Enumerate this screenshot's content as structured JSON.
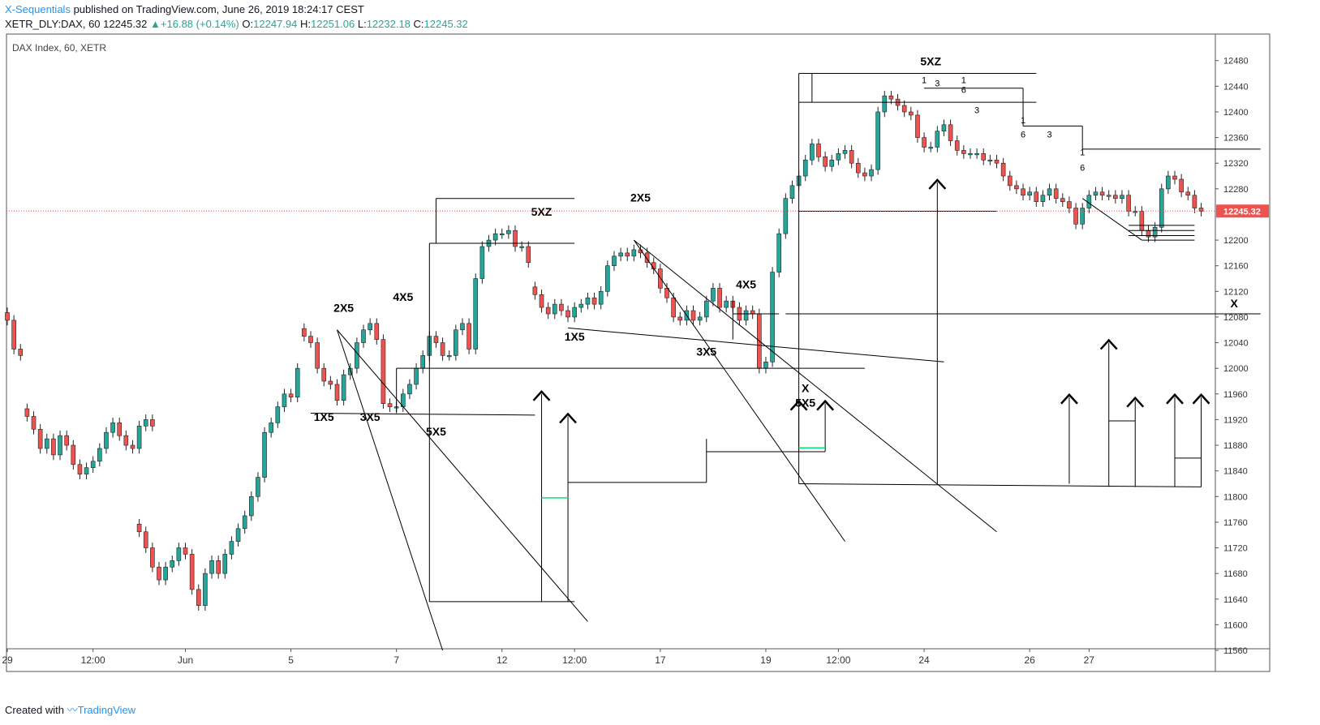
{
  "header": {
    "publisher": "X-Sequentials",
    "published_text": "published on TradingView.com, June 26, 2019 18:24:17 CEST",
    "symbol": "XETR_DLY:DAX, 60",
    "last": "12245.32",
    "change": "+16.88 (+0.14%)",
    "open_label": "O:",
    "open": "12247.94",
    "high_label": "H:",
    "high": "12251.06",
    "low_label": "L:",
    "low": "12232.18",
    "close_label": "C:",
    "close": "12245.32"
  },
  "footer": {
    "created_with": "Created with",
    "brand": "TradingView"
  },
  "colors": {
    "up": "#26a69a",
    "down": "#ef5350",
    "price_line": "#ef5350",
    "accent": "#2196f3",
    "annotation": "#000000",
    "marker_green": "#00e676"
  },
  "chart_data": {
    "type": "candlestick",
    "title": "DAX Index, 60, XETR",
    "last_price": 12245.32,
    "ylim": [
      11540,
      12510
    ],
    "y_ticks": [
      12480,
      12440,
      12400,
      12360,
      12320,
      12280,
      12200,
      12160,
      12120,
      12080,
      12040,
      12000,
      11960,
      11920,
      11880,
      11840,
      11800,
      11760,
      11720,
      11680,
      11640,
      11600,
      11560
    ],
    "x_ticks": [
      {
        "label": "29",
        "bar": 0
      },
      {
        "label": "12:00",
        "bar": 13
      },
      {
        "label": "Jun",
        "bar": 27
      },
      {
        "label": "5",
        "bar": 43
      },
      {
        "label": "7",
        "bar": 59
      },
      {
        "label": "12",
        "bar": 75
      },
      {
        "label": "12:00",
        "bar": 86
      },
      {
        "label": "17",
        "bar": 99
      },
      {
        "label": "19",
        "bar": 115
      },
      {
        "label": "12:00",
        "bar": 126
      },
      {
        "label": "24",
        "bar": 139
      },
      {
        "label": "26",
        "bar": 155
      },
      {
        "label": "27",
        "bar": 164
      }
    ],
    "segments": [
      {
        "start": 0,
        "values": [
          12075,
          12030,
          12020
        ]
      },
      {
        "start": 3,
        "values": [
          11925,
          11905,
          11875,
          11890,
          11865,
          11895,
          11880,
          11850,
          11835,
          11845,
          11855,
          11875,
          11900,
          11915,
          11895,
          11880,
          11875,
          11910,
          11920,
          11910
        ]
      },
      {
        "start": 20,
        "values": [
          11745,
          11720,
          11690,
          11670,
          11690,
          11700,
          11720,
          11710,
          11655,
          11630,
          11680,
          11700,
          11680,
          11710,
          11730,
          11750,
          11770,
          11800,
          11830,
          11900,
          11915,
          11940,
          11960,
          11955,
          12000
        ]
      },
      {
        "start": 45,
        "values": [
          12050,
          12040,
          12000,
          11980,
          11975,
          11950,
          11990,
          12000,
          12040,
          12060,
          12070,
          12045,
          11945,
          11940,
          11940,
          11960,
          11975,
          12000,
          12020,
          12050,
          12040,
          12020,
          12020,
          12060,
          12070,
          12030,
          12140,
          12190,
          12200,
          12210,
          12210,
          12215,
          12190,
          12190,
          12165
        ]
      },
      {
        "start": 80,
        "values": [
          12115,
          12095,
          12085,
          12100,
          12090,
          12080,
          12095,
          12100,
          12110,
          12100,
          12120,
          12160,
          12175,
          12180,
          12175,
          12185,
          12180,
          12165,
          12155,
          12125,
          12110,
          12080,
          12075,
          12090,
          12075,
          12080,
          12105,
          12125,
          12095,
          12105,
          12095,
          12075,
          12090,
          12085,
          12000,
          12010,
          12150,
          12210,
          12265,
          12285,
          12300,
          12325,
          12350,
          12330,
          12315,
          12325,
          12335,
          12340,
          12320,
          12305,
          12300,
          12310,
          12400,
          12425,
          12420,
          12410,
          12400,
          12395,
          12360,
          12345,
          12345,
          12370,
          12380,
          12355,
          12340,
          12335,
          12335,
          12335,
          12325,
          12325,
          12320,
          12300,
          12285,
          12280,
          12270,
          12275,
          12260,
          12270,
          12280,
          12265,
          12260,
          12250,
          12225,
          12250,
          12270,
          12275,
          12270,
          12270,
          12265,
          12270,
          12245,
          12245,
          12215,
          12205,
          12220,
          12280,
          12300,
          12295,
          12275,
          12270,
          12250,
          12245
        ]
      }
    ],
    "lines": [
      {
        "x1": 65,
        "y1": 12265,
        "x2": 86,
        "y2": 12265
      },
      {
        "x1": 65,
        "y1": 12265,
        "x2": 65,
        "y2": 12195
      },
      {
        "x1": 64,
        "y1": 12195,
        "x2": 86,
        "y2": 12195
      },
      {
        "x1": 64,
        "y1": 12195,
        "x2": 64,
        "y2": 11636
      },
      {
        "x1": 64,
        "y1": 11636,
        "x2": 86,
        "y2": 11636
      },
      {
        "x1": 81,
        "y1": 11636,
        "x2": 81,
        "y2": 11960
      },
      {
        "x1": 85,
        "y1": 11636,
        "x2": 85,
        "y2": 11925
      },
      {
        "x1": 85,
        "y1": 11822,
        "x2": 106,
        "y2": 11822
      },
      {
        "x1": 106,
        "y1": 11822,
        "x2": 106,
        "y2": 11890
      },
      {
        "x1": 106,
        "y1": 11870,
        "x2": 124,
        "y2": 11870
      },
      {
        "x1": 120,
        "y1": 11870,
        "x2": 120,
        "y2": 11945
      },
      {
        "x1": 124,
        "y1": 11870,
        "x2": 124,
        "y2": 11945
      },
      {
        "x1": 120,
        "y1": 12460,
        "x2": 120,
        "y2": 11820
      },
      {
        "x1": 120,
        "y1": 12460,
        "x2": 156,
        "y2": 12460
      },
      {
        "x1": 122,
        "y1": 12460,
        "x2": 122,
        "y2": 12415
      },
      {
        "x1": 120,
        "y1": 12415,
        "x2": 156,
        "y2": 12415
      },
      {
        "x1": 139,
        "y1": 12437,
        "x2": 154,
        "y2": 12437
      },
      {
        "x1": 154,
        "y1": 12437,
        "x2": 154,
        "y2": 12378
      },
      {
        "x1": 154,
        "y1": 12378,
        "x2": 163,
        "y2": 12378
      },
      {
        "x1": 163,
        "y1": 12378,
        "x2": 163,
        "y2": 12342
      },
      {
        "x1": 163,
        "y1": 12342,
        "x2": 190,
        "y2": 12342
      },
      {
        "x1": 120,
        "y1": 12245,
        "x2": 150,
        "y2": 12245
      },
      {
        "x1": 141,
        "y1": 12290,
        "x2": 141,
        "y2": 11820
      },
      {
        "x1": 120,
        "y1": 11820,
        "x2": 181,
        "y2": 11815
      },
      {
        "x1": 161,
        "y1": 11820,
        "x2": 161,
        "y2": 11955
      },
      {
        "x1": 167,
        "y1": 11815,
        "x2": 167,
        "y2": 12040
      },
      {
        "x1": 167,
        "y1": 11918,
        "x2": 171,
        "y2": 11918
      },
      {
        "x1": 171,
        "y1": 11815,
        "x2": 171,
        "y2": 11950
      },
      {
        "x1": 177,
        "y1": 11815,
        "x2": 177,
        "y2": 11955
      },
      {
        "x1": 177,
        "y1": 11860,
        "x2": 181,
        "y2": 11860
      },
      {
        "x1": 181,
        "y1": 11815,
        "x2": 181,
        "y2": 11955
      },
      {
        "x1": 118,
        "y1": 12085,
        "x2": 190,
        "y2": 12085
      },
      {
        "x1": 59,
        "y1": 12000,
        "x2": 130,
        "y2": 12000
      },
      {
        "x1": 59,
        "y1": 12000,
        "x2": 59,
        "y2": 11930
      },
      {
        "x1": 46,
        "y1": 11930,
        "x2": 80,
        "y2": 11927
      },
      {
        "x1": 85,
        "y1": 12063,
        "x2": 142,
        "y2": 12010
      },
      {
        "x1": 110,
        "y1": 12105,
        "x2": 110,
        "y2": 12045
      },
      {
        "x1": 110,
        "y1": 12085,
        "x2": 117,
        "y2": 12085
      },
      {
        "x1": 50,
        "y1": 12060,
        "x2": 66,
        "y2": 11560
      },
      {
        "x1": 50,
        "y1": 12060,
        "x2": 88,
        "y2": 11605
      },
      {
        "x1": 95,
        "y1": 12200,
        "x2": 127,
        "y2": 11730
      },
      {
        "x1": 95,
        "y1": 12200,
        "x2": 150,
        "y2": 11745
      },
      {
        "x1": 163,
        "y1": 12265,
        "x2": 172,
        "y2": 12200
      },
      {
        "x1": 172,
        "y1": 12200,
        "x2": 180,
        "y2": 12200
      },
      {
        "x1": 170,
        "y1": 12207,
        "x2": 180,
        "y2": 12207
      },
      {
        "x1": 170,
        "y1": 12215,
        "x2": 180,
        "y2": 12215
      },
      {
        "x1": 170,
        "y1": 12223,
        "x2": 180,
        "y2": 12223
      }
    ],
    "green_marks": [
      {
        "x1": 81,
        "x2": 85,
        "y": 11798
      },
      {
        "x1": 120,
        "x2": 124,
        "y": 11876
      }
    ],
    "arrows": [
      {
        "bar": 81,
        "y": 11960
      },
      {
        "bar": 85,
        "y": 11925
      },
      {
        "bar": 120,
        "y": 11945
      },
      {
        "bar": 124,
        "y": 11945
      },
      {
        "bar": 141,
        "y": 12290
      },
      {
        "bar": 161,
        "y": 11955
      },
      {
        "bar": 167,
        "y": 12040
      },
      {
        "bar": 171,
        "y": 11950
      },
      {
        "bar": 177,
        "y": 11955
      },
      {
        "bar": 181,
        "y": 11955
      }
    ],
    "labels": [
      {
        "text": "2X5",
        "bar": 51,
        "y": 12088,
        "size": 14,
        "weight": "bold"
      },
      {
        "text": "1X5",
        "bar": 48,
        "y": 11918,
        "size": 14,
        "weight": "bold"
      },
      {
        "text": "3X5",
        "bar": 55,
        "y": 11918,
        "size": 14,
        "weight": "bold"
      },
      {
        "text": "4X5",
        "bar": 60,
        "y": 12105,
        "size": 14,
        "weight": "bold"
      },
      {
        "text": "5X5",
        "bar": 65,
        "y": 11895,
        "size": 14,
        "weight": "bold"
      },
      {
        "text": "5XZ",
        "bar": 81,
        "y": 12238,
        "size": 14,
        "weight": "bold"
      },
      {
        "text": "1X5",
        "bar": 86,
        "y": 12043,
        "size": 14,
        "weight": "bold"
      },
      {
        "text": "2X5",
        "bar": 96,
        "y": 12260,
        "size": 14,
        "weight": "bold"
      },
      {
        "text": "3X5",
        "bar": 106,
        "y": 12020,
        "size": 14,
        "weight": "bold"
      },
      {
        "text": "4X5",
        "bar": 112,
        "y": 12125,
        "size": 14,
        "weight": "bold"
      },
      {
        "text": "X",
        "bar": 121,
        "y": 11963,
        "size": 14,
        "weight": "bold"
      },
      {
        "text": "5X5",
        "bar": 121,
        "y": 11940,
        "size": 14,
        "weight": "bold"
      },
      {
        "text": "5XZ",
        "bar": 140,
        "y": 12473,
        "size": 14,
        "weight": "bold"
      },
      {
        "text": "X",
        "bar": 186,
        "y": 12095,
        "size": 14,
        "weight": "bold"
      },
      {
        "text": "1",
        "bar": 139,
        "y": 12445,
        "size": 11,
        "weight": "normal"
      },
      {
        "text": "3",
        "bar": 141,
        "y": 12440,
        "size": 11,
        "weight": "normal"
      },
      {
        "text": "1",
        "bar": 145,
        "y": 12445,
        "size": 11,
        "weight": "normal"
      },
      {
        "text": "6",
        "bar": 145,
        "y": 12430,
        "size": 11,
        "weight": "normal"
      },
      {
        "text": "3",
        "bar": 147,
        "y": 12398,
        "size": 11,
        "weight": "normal"
      },
      {
        "text": "1",
        "bar": 154,
        "y": 12382,
        "size": 11,
        "weight": "normal"
      },
      {
        "text": "6",
        "bar": 154,
        "y": 12360,
        "size": 11,
        "weight": "normal"
      },
      {
        "text": "3",
        "bar": 158,
        "y": 12360,
        "size": 11,
        "weight": "normal"
      },
      {
        "text": "1",
        "bar": 163,
        "y": 12332,
        "size": 11,
        "weight": "normal"
      },
      {
        "text": "6",
        "bar": 163,
        "y": 12308,
        "size": 11,
        "weight": "normal"
      }
    ]
  }
}
